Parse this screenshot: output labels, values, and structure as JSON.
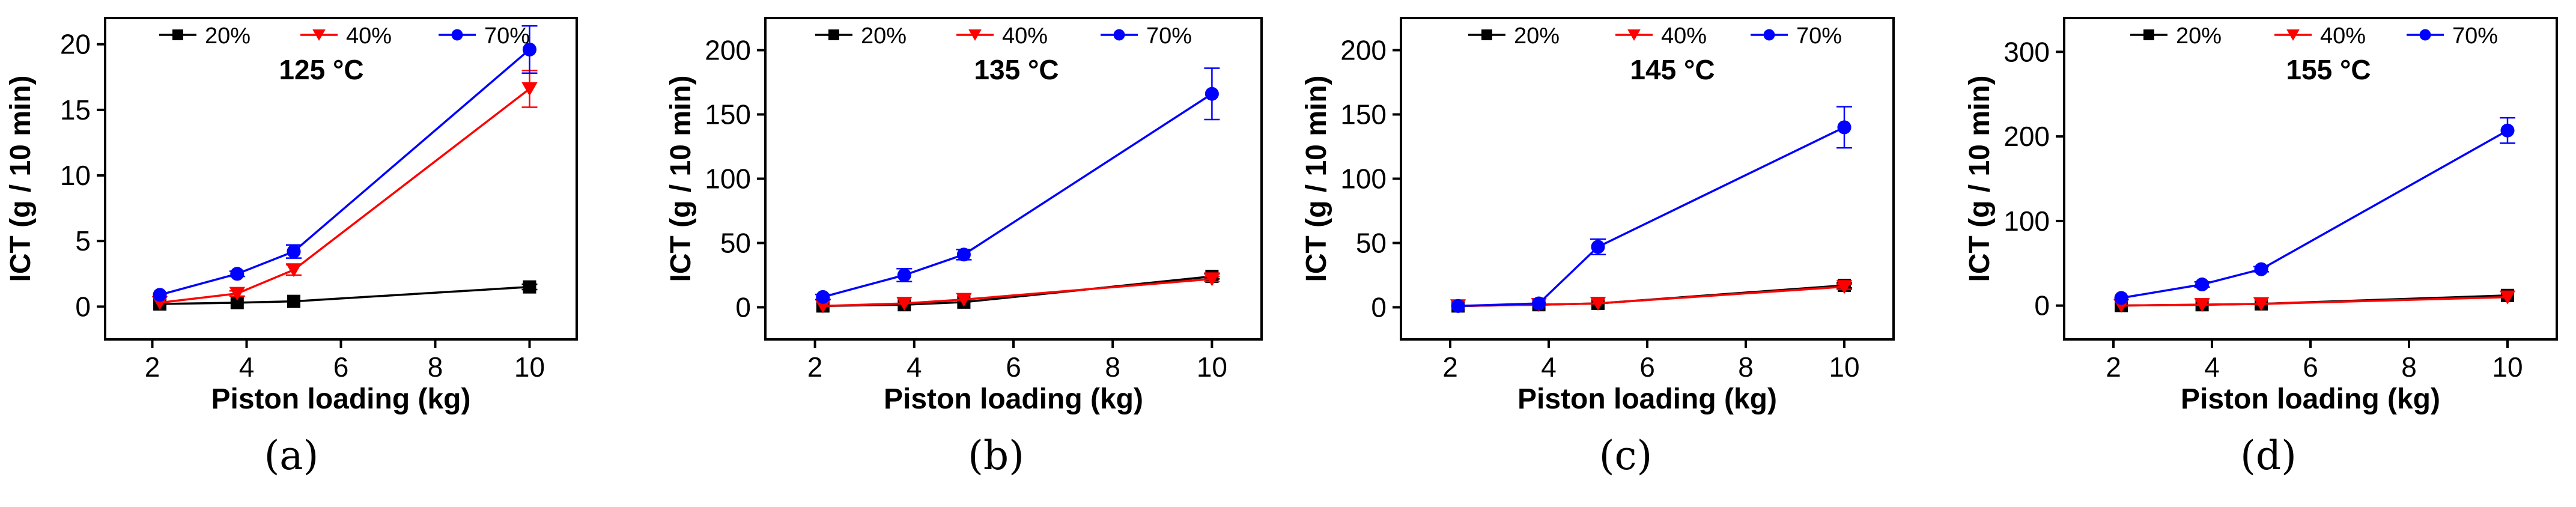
{
  "chart_data": [
    {
      "type": "line",
      "panel_label": "(a)",
      "temperature_label": "125 °C",
      "xlabel": "Piston loading (kg)",
      "ylabel": "ICT (g / 10 min)",
      "xlim": [
        1,
        11
      ],
      "ylim": [
        -2.5,
        22
      ],
      "xticks": [
        "2",
        "4",
        "6",
        "8",
        "10"
      ],
      "yticks": [
        "0",
        "5",
        "10",
        "15",
        "20"
      ],
      "x": [
        2.16,
        3.8,
        5.0,
        10.0
      ],
      "legend": [
        "20%",
        "40%",
        "70%"
      ],
      "series": [
        {
          "name": "20%",
          "values": [
            0.2,
            0.3,
            0.4,
            1.5
          ],
          "errors": [
            0.05,
            0.05,
            0.1,
            0.2
          ]
        },
        {
          "name": "40%",
          "values": [
            0.3,
            1.0,
            2.8,
            16.6
          ],
          "errors": [
            0.05,
            0.2,
            0.4,
            1.4
          ]
        },
        {
          "name": "70%",
          "values": [
            0.9,
            2.5,
            4.2,
            19.6
          ],
          "errors": [
            0.1,
            0.2,
            0.5,
            1.8
          ]
        }
      ]
    },
    {
      "type": "line",
      "panel_label": "(b)",
      "temperature_label": "135 °C",
      "xlabel": "Piston loading (kg)",
      "ylabel": "ICT (g / 10 min)",
      "xlim": [
        1,
        11
      ],
      "ylim": [
        -25,
        225
      ],
      "xticks": [
        "2",
        "4",
        "6",
        "8",
        "10"
      ],
      "yticks": [
        "0",
        "50",
        "100",
        "150",
        "200"
      ],
      "x": [
        2.16,
        3.8,
        5.0,
        10.0
      ],
      "legend": [
        "20%",
        "40%",
        "70%"
      ],
      "series": [
        {
          "name": "20%",
          "values": [
            1,
            2,
            4,
            24
          ],
          "errors": [
            0.5,
            1,
            1,
            2
          ]
        },
        {
          "name": "40%",
          "values": [
            1,
            3,
            6,
            22
          ],
          "errors": [
            0.5,
            1,
            1,
            2
          ]
        },
        {
          "name": "70%",
          "values": [
            8,
            25,
            41,
            166
          ],
          "errors": [
            2,
            5,
            4,
            20
          ]
        }
      ]
    },
    {
      "type": "line",
      "panel_label": "(c)",
      "temperature_label": "145 °C",
      "xlabel": "Piston loading (kg)",
      "ylabel": "ICT (g / 10 min)",
      "xlim": [
        1,
        11
      ],
      "ylim": [
        -25,
        225
      ],
      "xticks": [
        "2",
        "4",
        "6",
        "8",
        "10"
      ],
      "yticks": [
        "0",
        "50",
        "100",
        "150",
        "200"
      ],
      "x": [
        2.16,
        3.8,
        5.0,
        10.0
      ],
      "legend": [
        "20%",
        "40%",
        "70%"
      ],
      "series": [
        {
          "name": "20%",
          "values": [
            1,
            2,
            3,
            17
          ],
          "errors": [
            0.5,
            0.5,
            1,
            2
          ]
        },
        {
          "name": "40%",
          "values": [
            1,
            2,
            3,
            16
          ],
          "errors": [
            0.5,
            0.5,
            1,
            2
          ]
        },
        {
          "name": "70%",
          "values": [
            1,
            3,
            47,
            140
          ],
          "errors": [
            0.5,
            1,
            6,
            16
          ]
        }
      ]
    },
    {
      "type": "line",
      "panel_label": "(d)",
      "temperature_label": "155 °C",
      "xlabel": "Piston loading (kg)",
      "ylabel": "ICT (g / 10 min)",
      "xlim": [
        1,
        11
      ],
      "ylim": [
        -40,
        340
      ],
      "xticks": [
        "2",
        "4",
        "6",
        "8",
        "10"
      ],
      "yticks": [
        "0",
        "100",
        "200",
        "300"
      ],
      "x": [
        2.16,
        3.8,
        5.0,
        10.0
      ],
      "legend": [
        "20%",
        "40%",
        "70%"
      ],
      "series": [
        {
          "name": "20%",
          "values": [
            0,
            1,
            2,
            12
          ],
          "errors": [
            0.5,
            0.5,
            1,
            2
          ]
        },
        {
          "name": "40%",
          "values": [
            0,
            1,
            2,
            10
          ],
          "errors": [
            0.5,
            0.5,
            1,
            2
          ]
        },
        {
          "name": "70%",
          "values": [
            9,
            25,
            43,
            207
          ],
          "errors": [
            1,
            3,
            3,
            15
          ]
        }
      ]
    }
  ],
  "colors": {
    "20%": "#000000",
    "40%": "#ff0000",
    "70%": "#0000ff"
  },
  "markers": {
    "20%": "square",
    "40%": "triangle-down",
    "70%": "circle"
  }
}
